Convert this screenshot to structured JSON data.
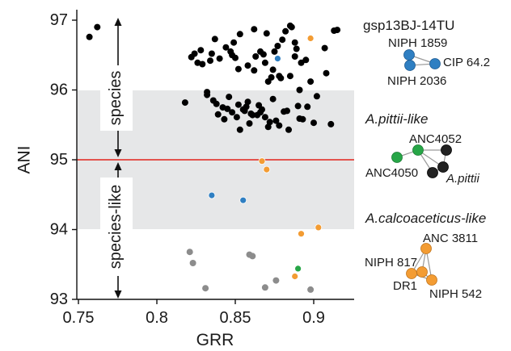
{
  "chart_data": {
    "type": "scatter",
    "title": "",
    "xlabel": "GRR",
    "ylabel": "ANI",
    "xlim": [
      0.75,
      0.925
    ],
    "ylim": [
      93,
      97
    ],
    "xticks": [
      "0.75",
      "0.8",
      "0.85",
      "0.9"
    ],
    "yticks": [
      "93",
      "94",
      "95",
      "96",
      "97"
    ],
    "grid": false,
    "reference_line": {
      "y": 95.0,
      "color": "#e2231a"
    },
    "shaded_bands": [
      {
        "y_from": 95.0,
        "y_to": 95.98,
        "color": "#e6e7e8"
      },
      {
        "y_from": 94.0,
        "y_to": 95.0,
        "color": "#e6e7e8"
      }
    ],
    "regions": [
      {
        "label": "species",
        "y_from": 95.0,
        "y_to": 97.0,
        "x": 0.7785
      },
      {
        "label": "species-like",
        "y_from": 93.0,
        "y_to": 95.0,
        "x": 0.7785
      }
    ],
    "series": [
      {
        "color": "#000000",
        "points": [
          [
            0.757,
            96.76
          ],
          [
            0.762,
            96.9
          ],
          [
            0.818,
            95.82
          ],
          [
            0.822,
            96.47
          ],
          [
            0.824,
            96.52
          ],
          [
            0.826,
            96.39
          ],
          [
            0.828,
            96.57
          ],
          [
            0.829,
            96.37
          ],
          [
            0.832,
            95.93
          ],
          [
            0.832,
            95.97
          ],
          [
            0.834,
            96.42
          ],
          [
            0.835,
            96.52
          ],
          [
            0.837,
            96.73
          ],
          [
            0.836,
            95.85
          ],
          [
            0.838,
            95.8
          ],
          [
            0.839,
            95.65
          ],
          [
            0.84,
            96.45
          ],
          [
            0.842,
            95.75
          ],
          [
            0.843,
            95.58
          ],
          [
            0.844,
            96.61
          ],
          [
            0.845,
            95.73
          ],
          [
            0.846,
            95.9
          ],
          [
            0.847,
            96.55
          ],
          [
            0.848,
            96.5
          ],
          [
            0.848,
            95.68
          ],
          [
            0.849,
            96.68
          ],
          [
            0.85,
            96.46
          ],
          [
            0.851,
            95.61
          ],
          [
            0.852,
            96.3
          ],
          [
            0.852,
            95.79
          ],
          [
            0.853,
            96.8
          ],
          [
            0.853,
            95.43
          ],
          [
            0.855,
            95.72
          ],
          [
            0.856,
            95.7
          ],
          [
            0.857,
            95.76
          ],
          [
            0.858,
            95.83
          ],
          [
            0.858,
            96.35
          ],
          [
            0.859,
            95.52
          ],
          [
            0.86,
            95.66
          ],
          [
            0.861,
            95.64
          ],
          [
            0.862,
            96.87
          ],
          [
            0.862,
            96.28
          ],
          [
            0.863,
            96.48
          ],
          [
            0.864,
            95.64
          ],
          [
            0.865,
            95.78
          ],
          [
            0.866,
            96.55
          ],
          [
            0.866,
            95.68
          ],
          [
            0.867,
            95.72
          ],
          [
            0.868,
            96.51
          ],
          [
            0.869,
            96.39
          ],
          [
            0.869,
            95.61
          ],
          [
            0.87,
            96.81
          ],
          [
            0.871,
            96.12
          ],
          [
            0.871,
            95.47
          ],
          [
            0.872,
            95.54
          ],
          [
            0.873,
            96.18
          ],
          [
            0.874,
            95.87
          ],
          [
            0.874,
            96.29
          ],
          [
            0.875,
            96.55
          ],
          [
            0.876,
            95.56
          ],
          [
            0.877,
            96.63
          ],
          [
            0.878,
            95.49
          ],
          [
            0.878,
            96.2
          ],
          [
            0.879,
            96.17
          ],
          [
            0.88,
            96.72
          ],
          [
            0.881,
            95.69
          ],
          [
            0.882,
            96.84
          ],
          [
            0.883,
            95.7
          ],
          [
            0.884,
            95.43
          ],
          [
            0.885,
            96.92
          ],
          [
            0.885,
            96.2
          ],
          [
            0.886,
            96.9
          ],
          [
            0.888,
            96.68
          ],
          [
            0.888,
            96.48
          ],
          [
            0.889,
            96.59
          ],
          [
            0.89,
            95.77
          ],
          [
            0.891,
            96.0
          ],
          [
            0.891,
            95.59
          ],
          [
            0.892,
            96.39
          ],
          [
            0.893,
            95.58
          ],
          [
            0.895,
            96.43
          ],
          [
            0.896,
            95.76
          ],
          [
            0.898,
            96.12
          ],
          [
            0.9,
            95.53
          ],
          [
            0.902,
            95.91
          ],
          [
            0.907,
            96.6
          ],
          [
            0.911,
            95.51
          ],
          [
            0.913,
            96.85
          ],
          [
            0.915,
            96.86
          ],
          [
            0.908,
            96.24
          ]
        ]
      },
      {
        "color": "#f39c33",
        "points": [
          [
            0.898,
            96.74
          ],
          [
            0.867,
            94.98
          ],
          [
            0.87,
            94.86
          ],
          [
            0.892,
            93.94
          ],
          [
            0.903,
            94.03
          ],
          [
            0.888,
            93.33
          ]
        ]
      },
      {
        "color": "#2f7fc2",
        "points": [
          [
            0.877,
            96.45
          ],
          [
            0.835,
            94.49
          ],
          [
            0.855,
            94.42
          ]
        ]
      },
      {
        "color": "#27a647",
        "points": [
          [
            0.89,
            93.44
          ]
        ]
      },
      {
        "color": "#8c8c8c",
        "points": [
          [
            0.821,
            93.68
          ],
          [
            0.823,
            93.52
          ],
          [
            0.831,
            93.16
          ],
          [
            0.859,
            93.64
          ],
          [
            0.861,
            93.62
          ],
          [
            0.869,
            93.17
          ],
          [
            0.876,
            93.27
          ],
          [
            0.898,
            93.14
          ]
        ]
      }
    ]
  },
  "legend": {
    "groups": [
      {
        "title": "gsp13BJ-14TU",
        "italic": false,
        "nodes": [
          {
            "label": "NIPH 1859",
            "color": "#2f7fc2"
          },
          {
            "label": "CIP 64.2",
            "color": "#2f7fc2"
          },
          {
            "label": "NIPH 2036",
            "color": "#2f7fc2"
          }
        ]
      },
      {
        "title": "A.pittii-like",
        "italic": true,
        "nodes": [
          {
            "label": "ANC4052",
            "color": "#27a647"
          },
          {
            "label": "ANC4050",
            "color": "#27a647"
          },
          {
            "label": "A.pittii",
            "color": "#222222"
          }
        ]
      },
      {
        "title": "A.calcoaceticus-like",
        "italic": true,
        "nodes": [
          {
            "label": "ANC 3811",
            "color": "#f39c33"
          },
          {
            "label": "NIPH 817",
            "color": "#f39c33"
          },
          {
            "label": "DR1",
            "color": "#f39c33"
          },
          {
            "label": "NIPH 542",
            "color": "#f39c33"
          }
        ]
      }
    ]
  }
}
